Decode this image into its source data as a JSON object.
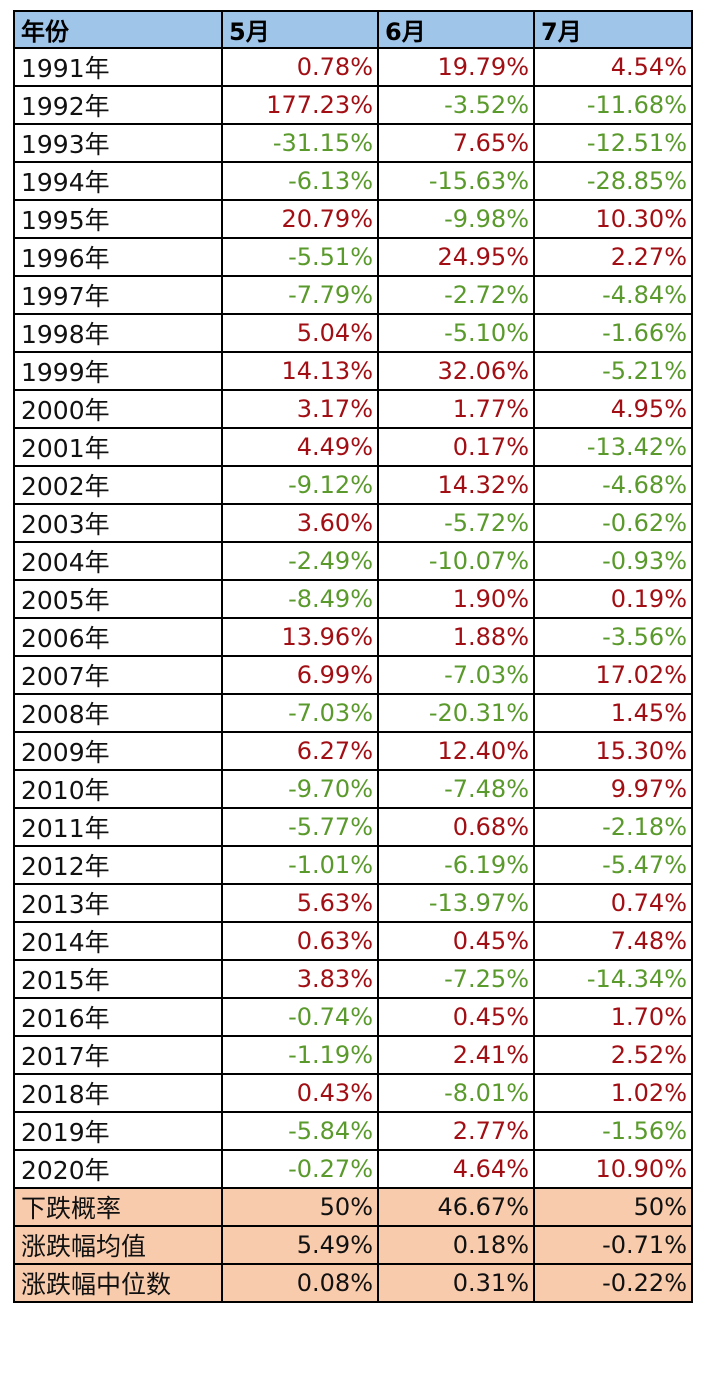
{
  "chart_data": {
    "type": "table",
    "columns": [
      "年份",
      "5月",
      "6月",
      "7月"
    ],
    "rows": [
      [
        "1991年",
        "0.78%",
        "19.79%",
        "4.54%"
      ],
      [
        "1992年",
        "177.23%",
        "-3.52%",
        "-11.68%"
      ],
      [
        "1993年",
        "-31.15%",
        "7.65%",
        "-12.51%"
      ],
      [
        "1994年",
        "-6.13%",
        "-15.63%",
        "-28.85%"
      ],
      [
        "1995年",
        "20.79%",
        "-9.98%",
        "10.30%"
      ],
      [
        "1996年",
        "-5.51%",
        "24.95%",
        "2.27%"
      ],
      [
        "1997年",
        "-7.79%",
        "-2.72%",
        "-4.84%"
      ],
      [
        "1998年",
        "5.04%",
        "-5.10%",
        "-1.66%"
      ],
      [
        "1999年",
        "14.13%",
        "32.06%",
        "-5.21%"
      ],
      [
        "2000年",
        "3.17%",
        "1.77%",
        "4.95%"
      ],
      [
        "2001年",
        "4.49%",
        "0.17%",
        "-13.42%"
      ],
      [
        "2002年",
        "-9.12%",
        "14.32%",
        "-4.68%"
      ],
      [
        "2003年",
        "3.60%",
        "-5.72%",
        "-0.62%"
      ],
      [
        "2004年",
        "-2.49%",
        "-10.07%",
        "-0.93%"
      ],
      [
        "2005年",
        "-8.49%",
        "1.90%",
        "0.19%"
      ],
      [
        "2006年",
        "13.96%",
        "1.88%",
        "-3.56%"
      ],
      [
        "2007年",
        "6.99%",
        "-7.03%",
        "17.02%"
      ],
      [
        "2008年",
        "-7.03%",
        "-20.31%",
        "1.45%"
      ],
      [
        "2009年",
        "6.27%",
        "12.40%",
        "15.30%"
      ],
      [
        "2010年",
        "-9.70%",
        "-7.48%",
        "9.97%"
      ],
      [
        "2011年",
        "-5.77%",
        "0.68%",
        "-2.18%"
      ],
      [
        "2012年",
        "-1.01%",
        "-6.19%",
        "-5.47%"
      ],
      [
        "2013年",
        "5.63%",
        "-13.97%",
        "0.74%"
      ],
      [
        "2014年",
        "0.63%",
        "0.45%",
        "7.48%"
      ],
      [
        "2015年",
        "3.83%",
        "-7.25%",
        "-14.34%"
      ],
      [
        "2016年",
        "-0.74%",
        "0.45%",
        "1.70%"
      ],
      [
        "2017年",
        "-1.19%",
        "2.41%",
        "2.52%"
      ],
      [
        "2018年",
        "0.43%",
        "-8.01%",
        "1.02%"
      ],
      [
        "2019年",
        "-5.84%",
        "2.77%",
        "-1.56%"
      ],
      [
        "2020年",
        "-0.27%",
        "4.64%",
        "10.90%"
      ]
    ],
    "summary_rows": [
      [
        "下跌概率",
        "50%",
        "46.67%",
        "50%"
      ],
      [
        "涨跌幅均值",
        "5.49%",
        "0.18%",
        "-0.71%"
      ],
      [
        "涨跌幅中位数",
        "0.08%",
        "0.31%",
        "-0.22%"
      ]
    ],
    "colors": {
      "header_bg": "#9fc5e8",
      "summary_bg": "#f8cbad",
      "positive": "#a10f14",
      "negative": "#5a9a2c"
    }
  }
}
